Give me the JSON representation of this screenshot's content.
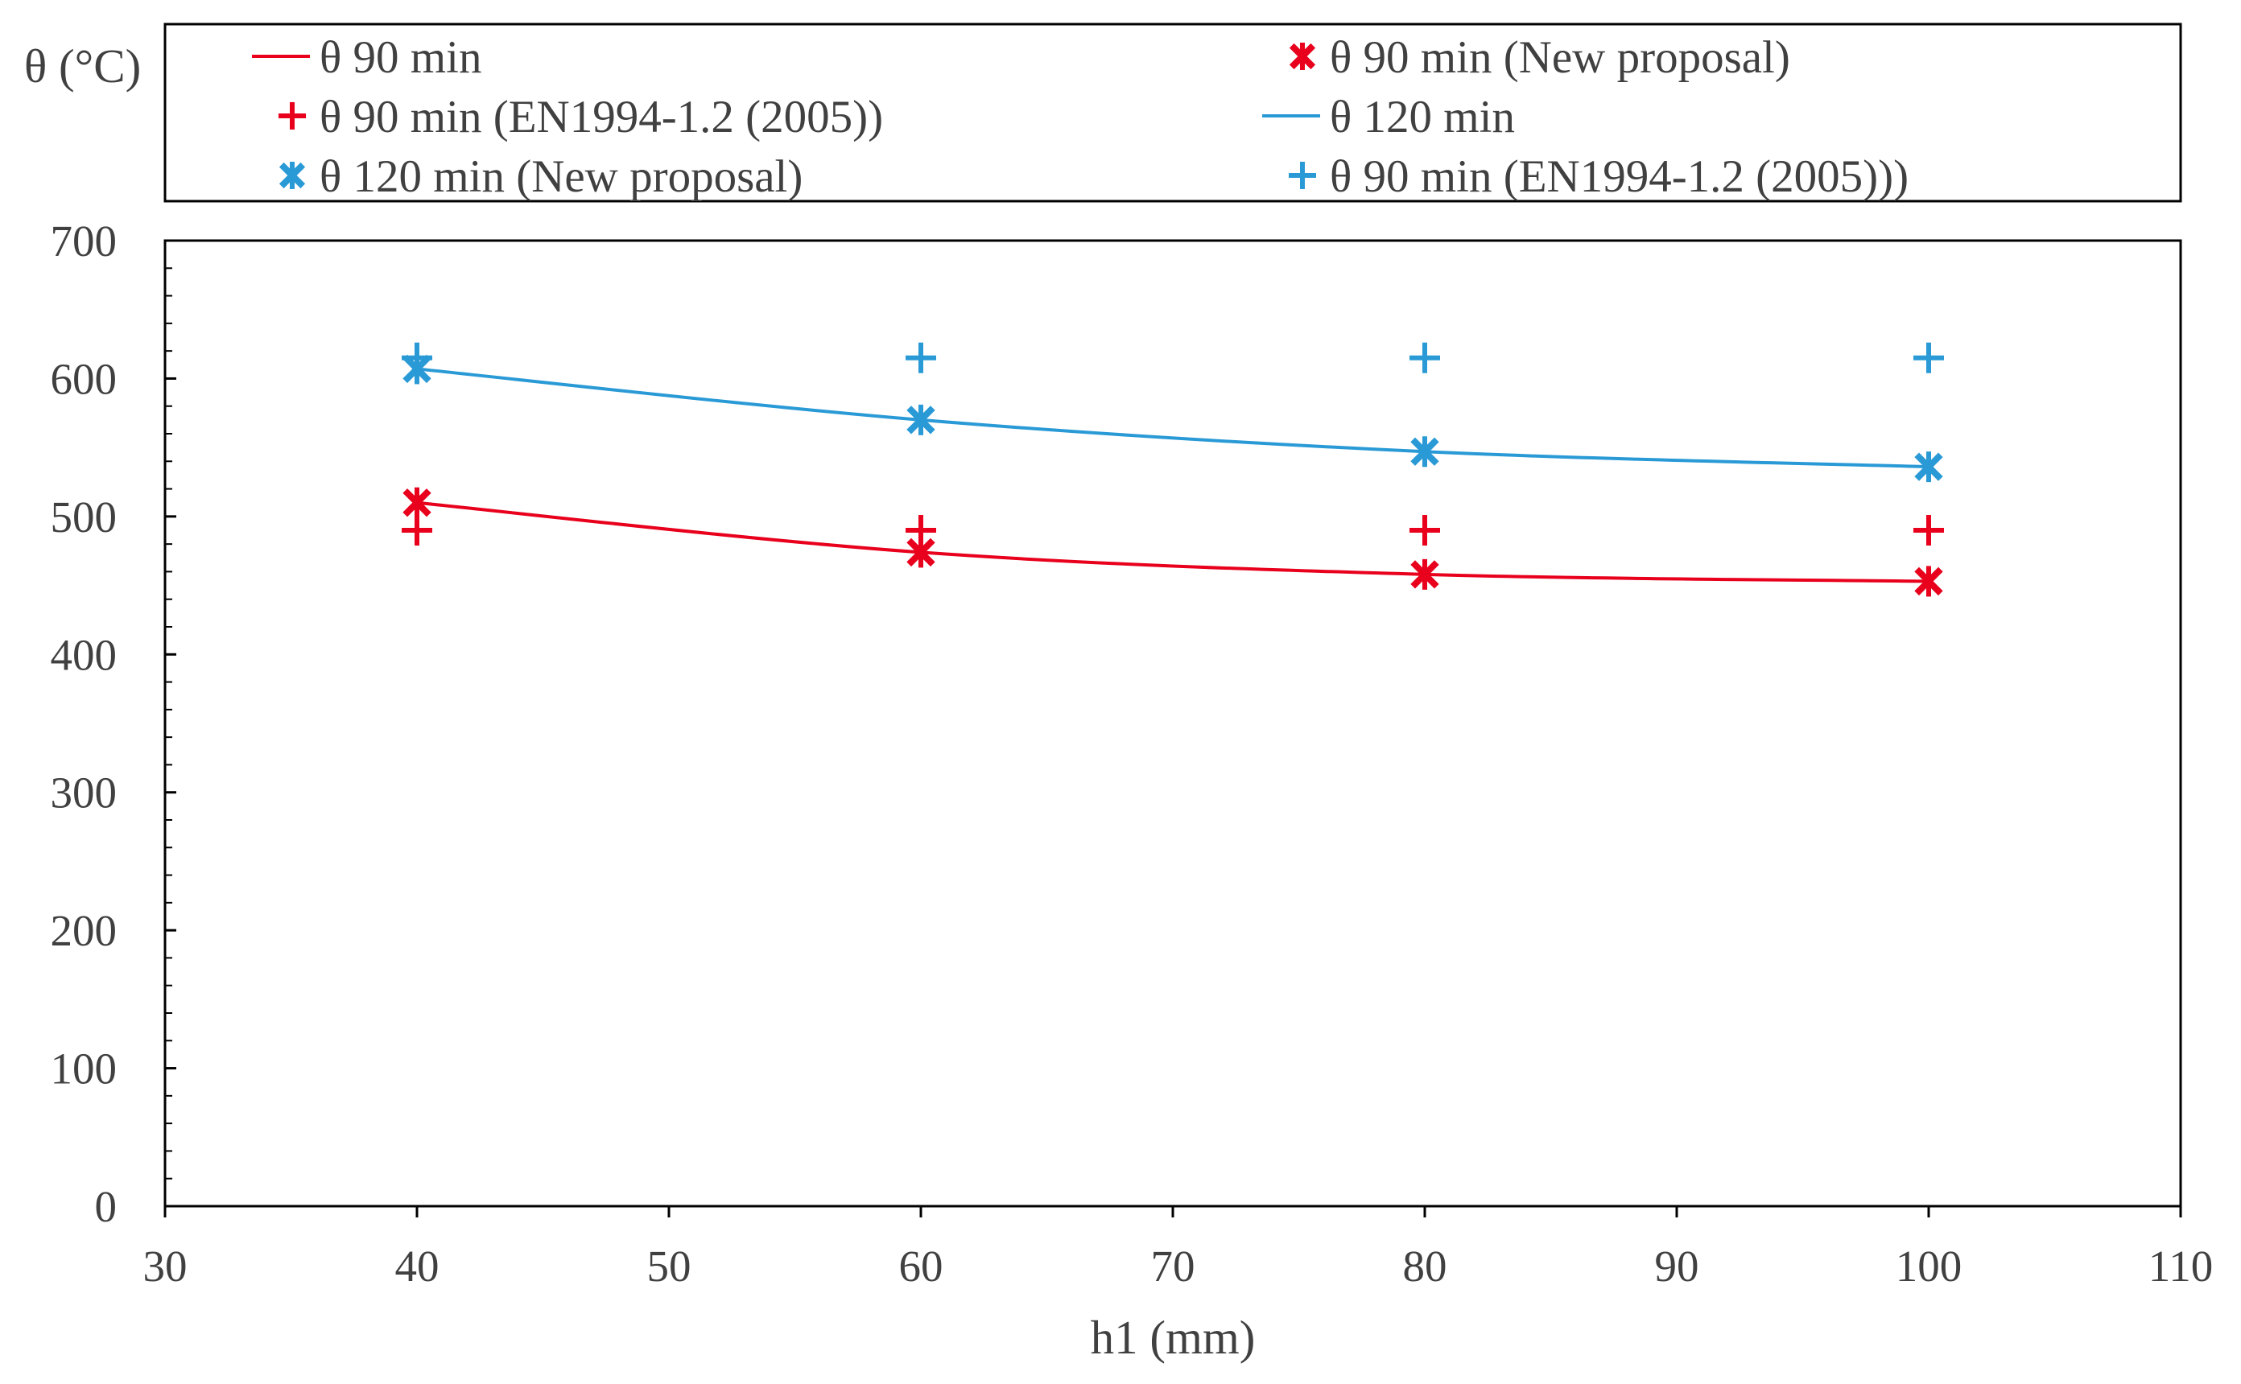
{
  "chart_data": {
    "type": "line",
    "ylabel": "θ (°C)",
    "xlabel": "h1 (mm)",
    "xlim": [
      30,
      110
    ],
    "ylim": [
      0,
      700
    ],
    "xticks": [
      30,
      40,
      50,
      60,
      70,
      80,
      90,
      100,
      110
    ],
    "yticks": [
      0,
      100,
      200,
      300,
      400,
      500,
      600,
      700
    ],
    "grid": false,
    "legend_position": "top",
    "colors": {
      "red": "#e8001c",
      "blue": "#2a9ad6",
      "axis": "#000000",
      "text": "#404040"
    },
    "series": [
      {
        "name": "θ 90 min",
        "kind": "line",
        "color": "#e8001c",
        "x": [
          40,
          60,
          80,
          100
        ],
        "y": [
          510,
          474,
          458,
          453
        ]
      },
      {
        "name": "θ 90 min (New proposal)",
        "kind": "marker-star",
        "color": "#e8001c",
        "x": [
          40,
          60,
          80,
          100
        ],
        "y": [
          510,
          474,
          458,
          453
        ]
      },
      {
        "name": "θ 90 min (EN1994-1.2 (2005))",
        "kind": "marker-plus",
        "color": "#e8001c",
        "x": [
          40,
          60,
          80,
          100
        ],
        "y": [
          490,
          490,
          490,
          490
        ]
      },
      {
        "name": "θ 120 min",
        "kind": "line",
        "color": "#2a9ad6",
        "x": [
          40,
          60,
          80,
          100
        ],
        "y": [
          607,
          570,
          547,
          536
        ]
      },
      {
        "name": "θ 120 min (New proposal)",
        "kind": "marker-star",
        "color": "#2a9ad6",
        "x": [
          40,
          60,
          80,
          100
        ],
        "y": [
          607,
          570,
          547,
          536
        ]
      },
      {
        "name": "θ 90 min (EN1994-1.2 (2005)))",
        "kind": "marker-plus",
        "color": "#2a9ad6",
        "x": [
          40,
          60,
          80,
          100
        ],
        "y": [
          615,
          615,
          615,
          615
        ]
      }
    ]
  }
}
